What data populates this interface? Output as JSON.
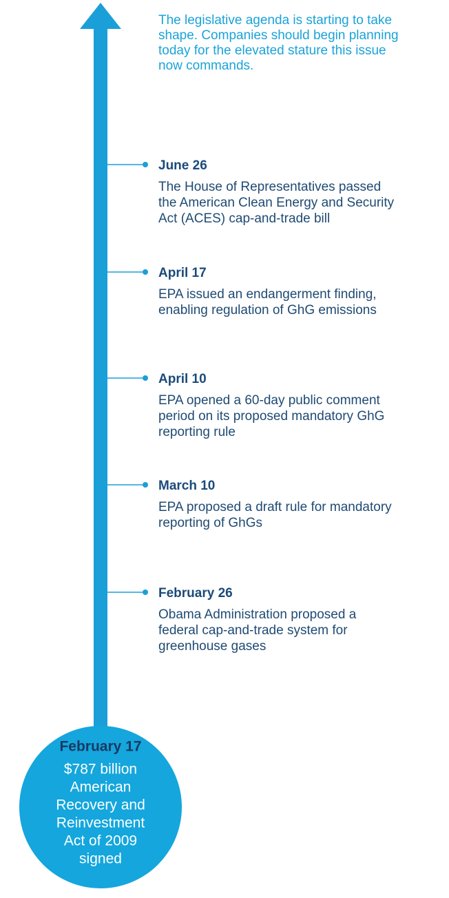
{
  "intro": [
    "The legislative agenda is starting to take",
    "shape. Companies should begin planning",
    "today for the elevated stature this issue",
    "now commands."
  ],
  "events": [
    {
      "date": "June 26",
      "lines": [
        "The House of Representatives passed",
        "the American Clean Energy and Security",
        "Act (ACES) cap-and-trade bill"
      ]
    },
    {
      "date": "April 17",
      "lines": [
        "EPA issued an endangerment finding,",
        "enabling regulation of GhG emissions"
      ]
    },
    {
      "date": "April 10",
      "lines": [
        "EPA opened a 60-day public comment",
        "period on its proposed mandatory GhG",
        "reporting rule"
      ]
    },
    {
      "date": "March 10",
      "lines": [
        "EPA proposed a draft rule for mandatory",
        "reporting of GhGs"
      ]
    },
    {
      "date": "February 26",
      "lines": [
        "Obama Administration proposed a",
        "federal cap-and-trade system for",
        "greenhouse gases"
      ]
    }
  ],
  "start": {
    "date": "February 17",
    "lines": [
      "$787 billion",
      "American",
      "Recovery and",
      "Reinvestment",
      "Act of 2009",
      "signed"
    ]
  }
}
